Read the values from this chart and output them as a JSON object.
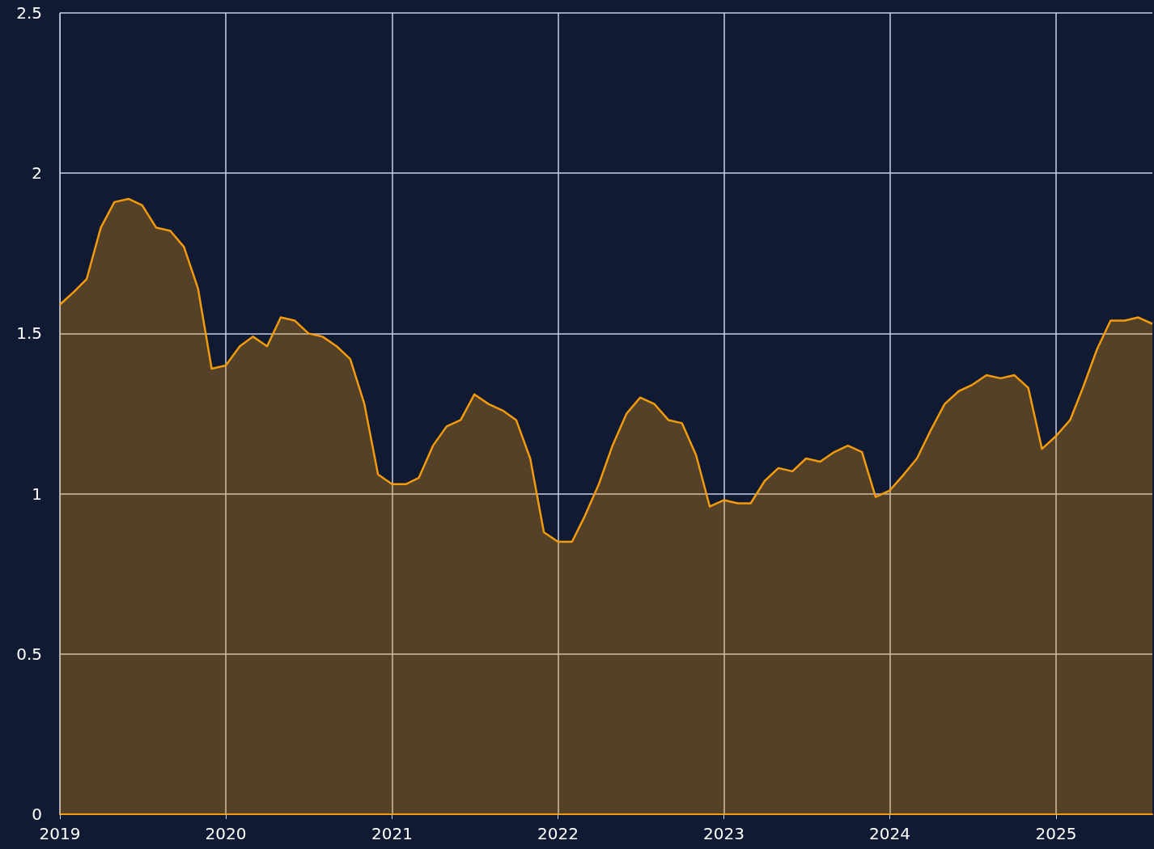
{
  "chart_data": {
    "type": "area",
    "x": [
      "2019-01",
      "2019-02",
      "2019-03",
      "2019-04",
      "2019-05",
      "2019-06",
      "2019-07",
      "2019-08",
      "2019-09",
      "2019-10",
      "2019-11",
      "2019-12",
      "2020-01",
      "2020-02",
      "2020-03",
      "2020-04",
      "2020-05",
      "2020-06",
      "2020-07",
      "2020-08",
      "2020-09",
      "2020-10",
      "2020-11",
      "2020-12",
      "2021-01",
      "2021-02",
      "2021-03",
      "2021-04",
      "2021-05",
      "2021-06",
      "2021-07",
      "2021-08",
      "2021-09",
      "2021-10",
      "2021-11",
      "2021-12",
      "2022-01",
      "2022-02",
      "2022-03",
      "2022-04",
      "2022-05",
      "2022-06",
      "2022-07",
      "2022-08",
      "2022-09",
      "2022-10",
      "2022-11",
      "2022-12",
      "2023-01",
      "2023-02",
      "2023-03",
      "2023-04",
      "2023-05",
      "2023-06",
      "2023-07",
      "2023-08",
      "2023-09",
      "2023-10",
      "2023-11",
      "2023-12",
      "2024-01",
      "2024-02",
      "2024-03",
      "2024-04",
      "2024-05",
      "2024-06",
      "2024-07",
      "2024-08",
      "2024-09",
      "2024-10",
      "2024-11",
      "2024-12",
      "2025-01",
      "2025-02",
      "2025-03",
      "2025-04",
      "2025-05",
      "2025-06",
      "2025-07",
      "2025-08"
    ],
    "series": [
      {
        "color": "#f29b0c",
        "values": [
          1.59,
          1.63,
          1.67,
          1.83,
          1.91,
          1.92,
          1.9,
          1.83,
          1.82,
          1.77,
          1.64,
          1.39,
          1.4,
          1.46,
          1.49,
          1.46,
          1.55,
          1.54,
          1.5,
          1.49,
          1.46,
          1.42,
          1.28,
          1.06,
          1.03,
          1.03,
          1.05,
          1.15,
          1.21,
          1.23,
          1.31,
          1.28,
          1.26,
          1.23,
          1.11,
          0.88,
          0.85,
          0.85,
          0.93,
          1.03,
          1.15,
          1.25,
          1.3,
          1.28,
          1.23,
          1.22,
          1.12,
          0.96,
          0.98,
          0.97,
          0.97,
          1.04,
          1.08,
          1.07,
          1.11,
          1.1,
          1.13,
          1.15,
          1.13,
          0.99,
          1.01,
          1.06,
          1.11,
          1.2,
          1.28,
          1.32,
          1.34,
          1.37,
          1.36,
          1.37,
          1.33,
          1.14,
          1.18,
          1.23,
          1.33,
          1.45,
          1.54,
          1.54,
          1.55,
          1.53
        ]
      }
    ],
    "xlim": [
      "2019-01",
      "2025-08"
    ],
    "xticks": [
      "2019",
      "2020",
      "2021",
      "2022",
      "2023",
      "2024",
      "2025"
    ],
    "ylim": [
      0,
      2.5
    ],
    "yticks": [
      0,
      0.5,
      1,
      1.5,
      2,
      2.5
    ],
    "grid": true
  }
}
